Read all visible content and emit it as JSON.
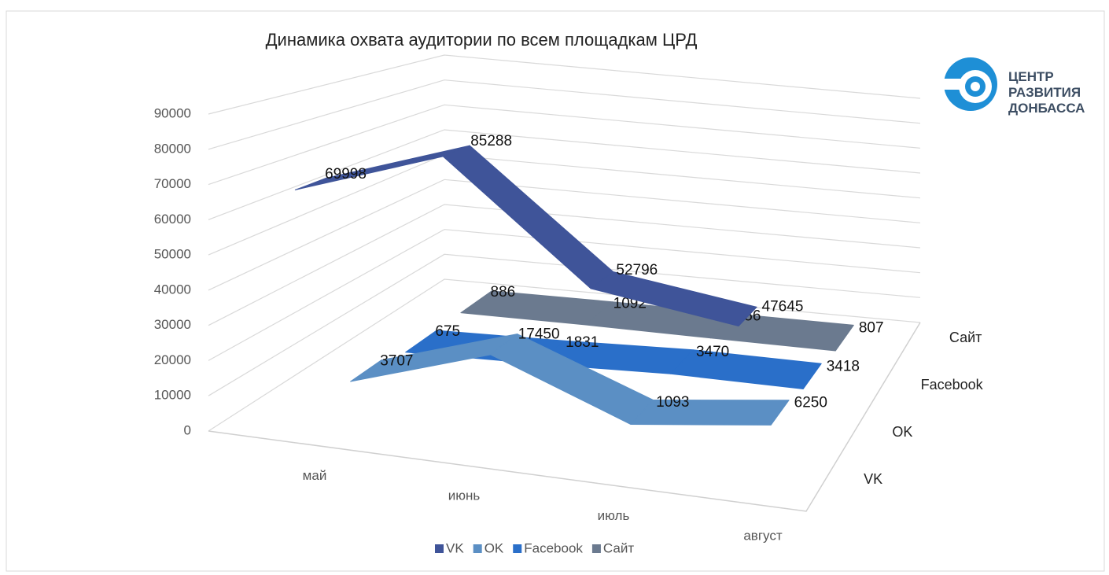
{
  "chart_data": {
    "type": "line",
    "title": "Динамика охвата аудитории по всем площадкам ЦРД",
    "categories": [
      "май",
      "июнь",
      "июль",
      "август"
    ],
    "series": [
      {
        "name": "VK",
        "color": "#3f5499",
        "values": [
          69998,
          85288,
          52796,
          47645
        ]
      },
      {
        "name": "OK",
        "color": "#5b8fc4",
        "values": [
          3707,
          17450,
          1093,
          6250
        ]
      },
      {
        "name": "Facebook",
        "color": "#2a6fc9",
        "values": [
          675,
          1831,
          3470,
          3418
        ]
      },
      {
        "name": "Сайт",
        "color": "#6b7a8f",
        "values": [
          886,
          1092,
          856,
          807
        ]
      }
    ],
    "ylim": [
      0,
      90000
    ],
    "yticks": [
      0,
      10000,
      20000,
      30000,
      40000,
      50000,
      60000,
      70000,
      80000,
      90000
    ],
    "grid": true,
    "legend": "bottom"
  },
  "logo": {
    "lines": [
      "ЦЕНТР",
      "РАЗВИТИЯ",
      "ДОНБАССА"
    ]
  }
}
